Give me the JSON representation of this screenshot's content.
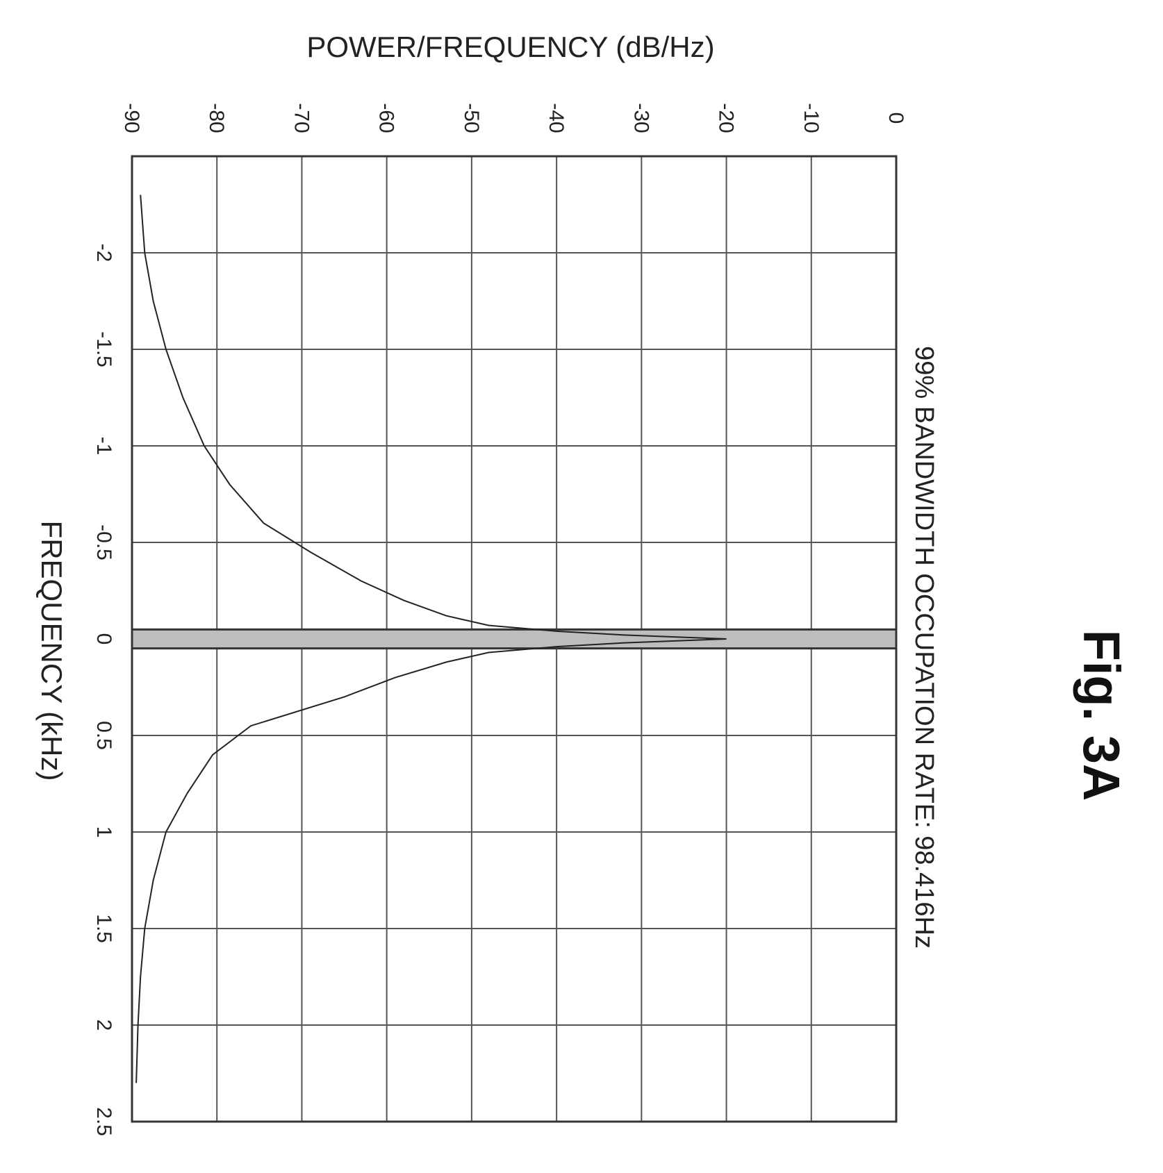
{
  "figure_label": "Fig. 3A",
  "chart_data": {
    "type": "line",
    "orientation": "rotated 90° clockwise",
    "title": "",
    "xlabel": "FREQUENCY (kHz)",
    "ylabel": "POWER/FREQUENCY (dB/Hz)",
    "xlim": [
      -2.5,
      2.5
    ],
    "ylim": [
      -90,
      0
    ],
    "x_ticks": [
      "-2",
      "-1.5",
      "-1",
      "-0.5",
      "0",
      "0.5",
      "1",
      "1.5",
      "2",
      "2.5"
    ],
    "y_ticks": [
      "-90",
      "-80",
      "-70",
      "-60",
      "-50",
      "-40",
      "-30",
      "-20",
      "-10",
      "0"
    ],
    "grid": true,
    "annotation": "99% BANDWIDTH OCCUPATION RATE: 98.416Hz",
    "occupied_band_khz": [
      -0.049,
      0.049
    ],
    "series": [
      {
        "x": [
          -2.3,
          -2.0,
          -1.75,
          -1.5,
          -1.25,
          -1.0,
          -0.8,
          -0.6,
          -0.45,
          -0.3,
          -0.2,
          -0.12,
          -0.07,
          -0.04,
          -0.02,
          0.0,
          0.02,
          0.04,
          0.07,
          0.12,
          0.2,
          0.3,
          0.45,
          0.6,
          0.8,
          1.0,
          1.25,
          1.5,
          1.75,
          2.0,
          2.3
        ],
        "y": [
          -89,
          -88.5,
          -87.5,
          -86,
          -84,
          -81.5,
          -78.5,
          -74.5,
          -69,
          -63,
          -58,
          -53,
          -48,
          -40,
          -32,
          -20,
          -32,
          -40,
          -48,
          -53,
          -59,
          -65,
          -76,
          -80.5,
          -83.5,
          -86,
          -87.5,
          -88.5,
          -89,
          -89.3,
          -89.5
        ]
      }
    ]
  },
  "colors": {
    "grid": "#555555",
    "frame": "#333333",
    "band": "#bdbdbd",
    "line": "#222222"
  }
}
